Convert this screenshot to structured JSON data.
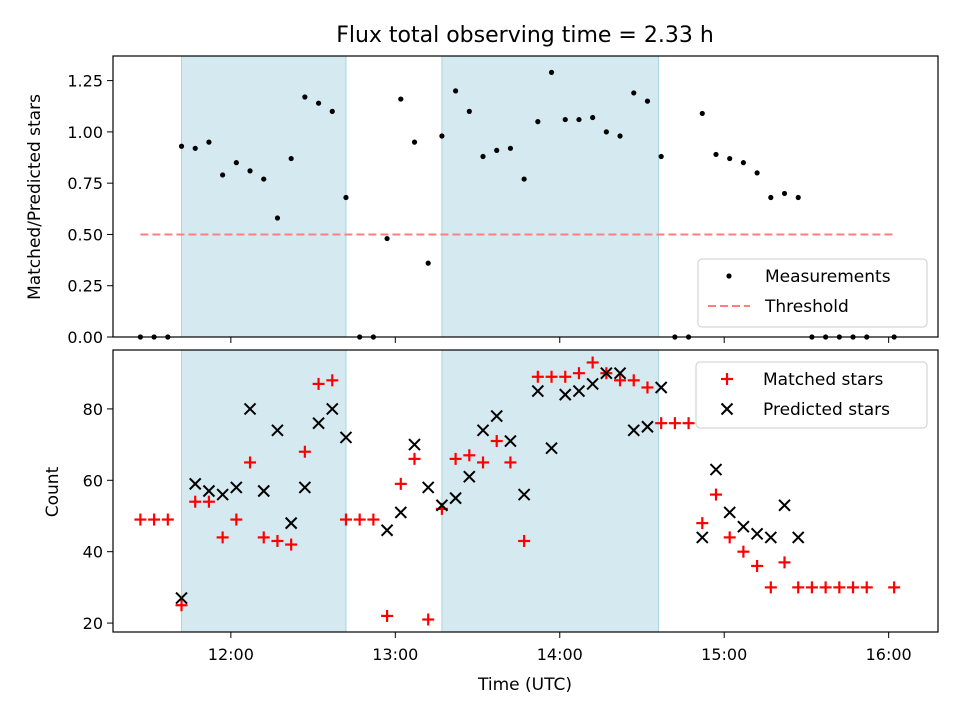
{
  "chart_data": {
    "title": "Flux total observing time = 2.33 h",
    "type": "scatter",
    "shaded_intervals": [
      [
        "11:42",
        "12:42"
      ],
      [
        "13:17",
        "14:36"
      ]
    ],
    "shade_color": "#d4eaf0",
    "xlabel": "Time (UTC)",
    "xlim": [
      "11:17",
      "16:18"
    ],
    "x_ticks": [
      "12:00",
      "13:00",
      "14:00",
      "15:00",
      "16:00"
    ],
    "x_tick_labels": [
      "12:00",
      "13:00",
      "14:00",
      "15:00",
      "16:00"
    ],
    "panels": [
      {
        "ylabel": "Matched/Predicted stars",
        "ylim": [
          0,
          1.37
        ],
        "y_ticks": [
          0,
          0.25,
          0.5,
          0.75,
          1.0,
          1.25
        ],
        "y_tick_labels": [
          "0.00",
          "0.25",
          "0.50",
          "0.75",
          "1.00",
          "1.25"
        ],
        "legend_position": "lower right",
        "series": [
          {
            "name": "Measurements",
            "type": "scatter",
            "marker": "dot",
            "color": "#000000",
            "points": [
              [
                "11:27",
                0.0
              ],
              [
                "11:32",
                0.0
              ],
              [
                "11:37",
                0.0
              ],
              [
                "11:42",
                0.93
              ],
              [
                "11:47",
                0.92
              ],
              [
                "11:52",
                0.95
              ],
              [
                "11:57",
                0.79
              ],
              [
                "12:02",
                0.85
              ],
              [
                "12:07",
                0.81
              ],
              [
                "12:12",
                0.77
              ],
              [
                "12:17",
                0.58
              ],
              [
                "12:22",
                0.87
              ],
              [
                "12:27",
                1.17
              ],
              [
                "12:32",
                1.14
              ],
              [
                "12:37",
                1.1
              ],
              [
                "12:42",
                0.68
              ],
              [
                "12:47",
                0.0
              ],
              [
                "12:52",
                0.0
              ],
              [
                "12:57",
                0.48
              ],
              [
                "13:02",
                1.16
              ],
              [
                "13:07",
                0.95
              ],
              [
                "13:12",
                0.36
              ],
              [
                "13:17",
                0.98
              ],
              [
                "13:22",
                1.2
              ],
              [
                "13:27",
                1.1
              ],
              [
                "13:32",
                0.88
              ],
              [
                "13:37",
                0.91
              ],
              [
                "13:42",
                0.92
              ],
              [
                "13:47",
                0.77
              ],
              [
                "13:52",
                1.05
              ],
              [
                "13:57",
                1.29
              ],
              [
                "14:02",
                1.06
              ],
              [
                "14:07",
                1.06
              ],
              [
                "14:12",
                1.07
              ],
              [
                "14:17",
                1.0
              ],
              [
                "14:22",
                0.98
              ],
              [
                "14:27",
                1.19
              ],
              [
                "14:32",
                1.15
              ],
              [
                "14:37",
                0.88
              ],
              [
                "14:42",
                0.0
              ],
              [
                "14:47",
                0.0
              ],
              [
                "14:52",
                1.09
              ],
              [
                "14:57",
                0.89
              ],
              [
                "15:02",
                0.87
              ],
              [
                "15:07",
                0.85
              ],
              [
                "15:12",
                0.8
              ],
              [
                "15:17",
                0.68
              ],
              [
                "15:22",
                0.7
              ],
              [
                "15:27",
                0.68
              ],
              [
                "15:32",
                0.0
              ],
              [
                "15:37",
                0.0
              ],
              [
                "15:42",
                0.0
              ],
              [
                "15:47",
                0.0
              ],
              [
                "15:52",
                0.0
              ],
              [
                "16:02",
                0.0
              ]
            ]
          },
          {
            "name": "Threshold",
            "type": "line",
            "style": "dashed",
            "color": "#ff7f7f",
            "points": [
              [
                "11:27",
                0.5
              ],
              [
                "16:02",
                0.5
              ]
            ]
          }
        ]
      },
      {
        "ylabel": "Count",
        "ylim": [
          17.5,
          96.5
        ],
        "y_ticks": [
          20,
          40,
          60,
          80
        ],
        "y_tick_labels": [
          "20",
          "40",
          "60",
          "80"
        ],
        "legend_position": "upper right",
        "series": [
          {
            "name": "Matched stars",
            "type": "scatter",
            "marker": "plus",
            "color": "#ff0000",
            "points": [
              [
                "11:27",
                49
              ],
              [
                "11:32",
                49
              ],
              [
                "11:37",
                49
              ],
              [
                "11:42",
                25
              ],
              [
                "11:47",
                54
              ],
              [
                "11:52",
                54
              ],
              [
                "11:57",
                44
              ],
              [
                "12:02",
                49
              ],
              [
                "12:07",
                65
              ],
              [
                "12:12",
                44
              ],
              [
                "12:17",
                43
              ],
              [
                "12:22",
                42
              ],
              [
                "12:27",
                68
              ],
              [
                "12:32",
                87
              ],
              [
                "12:37",
                88
              ],
              [
                "12:42",
                49
              ],
              [
                "12:47",
                49
              ],
              [
                "12:52",
                49
              ],
              [
                "12:57",
                22
              ],
              [
                "13:02",
                59
              ],
              [
                "13:07",
                66
              ],
              [
                "13:12",
                21
              ],
              [
                "13:17",
                52
              ],
              [
                "13:22",
                66
              ],
              [
                "13:27",
                67
              ],
              [
                "13:32",
                65
              ],
              [
                "13:37",
                71
              ],
              [
                "13:42",
                65
              ],
              [
                "13:47",
                43
              ],
              [
                "13:52",
                89
              ],
              [
                "13:57",
                89
              ],
              [
                "14:02",
                89
              ],
              [
                "14:07",
                90
              ],
              [
                "14:12",
                93
              ],
              [
                "14:17",
                90
              ],
              [
                "14:22",
                88
              ],
              [
                "14:27",
                88
              ],
              [
                "14:32",
                86
              ],
              [
                "14:37",
                76
              ],
              [
                "14:42",
                76
              ],
              [
                "14:47",
                76
              ],
              [
                "14:52",
                48
              ],
              [
                "14:57",
                56
              ],
              [
                "15:02",
                44
              ],
              [
                "15:07",
                40
              ],
              [
                "15:12",
                36
              ],
              [
                "15:17",
                30
              ],
              [
                "15:22",
                37
              ],
              [
                "15:27",
                30
              ],
              [
                "15:32",
                30
              ],
              [
                "15:37",
                30
              ],
              [
                "15:42",
                30
              ],
              [
                "15:47",
                30
              ],
              [
                "15:52",
                30
              ],
              [
                "16:02",
                30
              ]
            ]
          },
          {
            "name": "Predicted stars",
            "type": "scatter",
            "marker": "x",
            "color": "#000000",
            "points": [
              [
                "11:42",
                27
              ],
              [
                "11:47",
                59
              ],
              [
                "11:52",
                57
              ],
              [
                "11:57",
                56
              ],
              [
                "12:02",
                58
              ],
              [
                "12:07",
                80
              ],
              [
                "12:12",
                57
              ],
              [
                "12:17",
                74
              ],
              [
                "12:22",
                48
              ],
              [
                "12:27",
                58
              ],
              [
                "12:32",
                76
              ],
              [
                "12:37",
                80
              ],
              [
                "12:42",
                72
              ],
              [
                "12:57",
                46
              ],
              [
                "13:02",
                51
              ],
              [
                "13:07",
                70
              ],
              [
                "13:12",
                58
              ],
              [
                "13:17",
                53
              ],
              [
                "13:22",
                55
              ],
              [
                "13:27",
                61
              ],
              [
                "13:32",
                74
              ],
              [
                "13:37",
                78
              ],
              [
                "13:42",
                71
              ],
              [
                "13:47",
                56
              ],
              [
                "13:52",
                85
              ],
              [
                "13:57",
                69
              ],
              [
                "14:02",
                84
              ],
              [
                "14:07",
                85
              ],
              [
                "14:12",
                87
              ],
              [
                "14:17",
                90
              ],
              [
                "14:22",
                90
              ],
              [
                "14:27",
                74
              ],
              [
                "14:32",
                75
              ],
              [
                "14:37",
                86
              ],
              [
                "14:52",
                44
              ],
              [
                "14:57",
                63
              ],
              [
                "15:02",
                51
              ],
              [
                "15:07",
                47
              ],
              [
                "15:12",
                45
              ],
              [
                "15:17",
                44
              ],
              [
                "15:22",
                53
              ],
              [
                "15:27",
                44
              ]
            ]
          }
        ]
      }
    ]
  }
}
